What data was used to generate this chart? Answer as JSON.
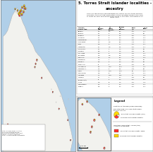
{
  "map_bg_color": "#b0cfe8",
  "land_color": "#f2f2ee",
  "land_edge_color": "#aaaaaa",
  "figure_bg": "#ffffff",
  "border_color": "#666666",
  "pie_colors": [
    "#FFD700",
    "#FF3333",
    "#ffffff"
  ],
  "pie_edge": "#333333",
  "title_line1": "5. Torres Strait Islander localities -",
  "title_line2": "ancestry",
  "subtitle": "Share of the people self-identified as having Torres Strait Islander\nancestry (ANC) in total population of the localities where there are\nat least 25 such and where their share of the total population is at\nleast 1.5%.",
  "table_cols": [
    "Locality / \nlocality type",
    "Torres Strait\nIslander ancestry\n(ANC)",
    "Torres Strait\nIslander (other)\nancestry",
    "Persons with\nTorres Strait\nIslander ancestry",
    "Share of persons\nwith TSI ancestry\nin total pop. (%)",
    "Torres Strait\nIslander or other\nancestry"
  ],
  "legend_header": "Legend",
  "legend_line1": "Subtitles in the map (TPBG SUBTITLE):",
  "legend_line2": "population map: any Torres Strait Islander\nancestry, persons",
  "legend_item1": "Torres Strait Islander ancestry (ANC)",
  "legend_item2": "No Torres Strait Islander ancestry",
  "legend_line3": "Localities of Torres Strait Islander (ANC)\nin locality's boundaries:",
  "legend_item3": "Torres Strait Islander ancestry, share",
  "legend_item4": "No Torres Strait Islander ancestry",
  "note_text": "Note: This map shows localities where Torres Strait Islander ancestry\nconstitutes a significant share of the total population.\nData from Australian Bureau of Statistics.\nLocalities shown have at least 25 persons with Torres Strait Islander\nancestry and at least 1.5% share of the total population.",
  "scalebar_label": "0       50      100 km"
}
